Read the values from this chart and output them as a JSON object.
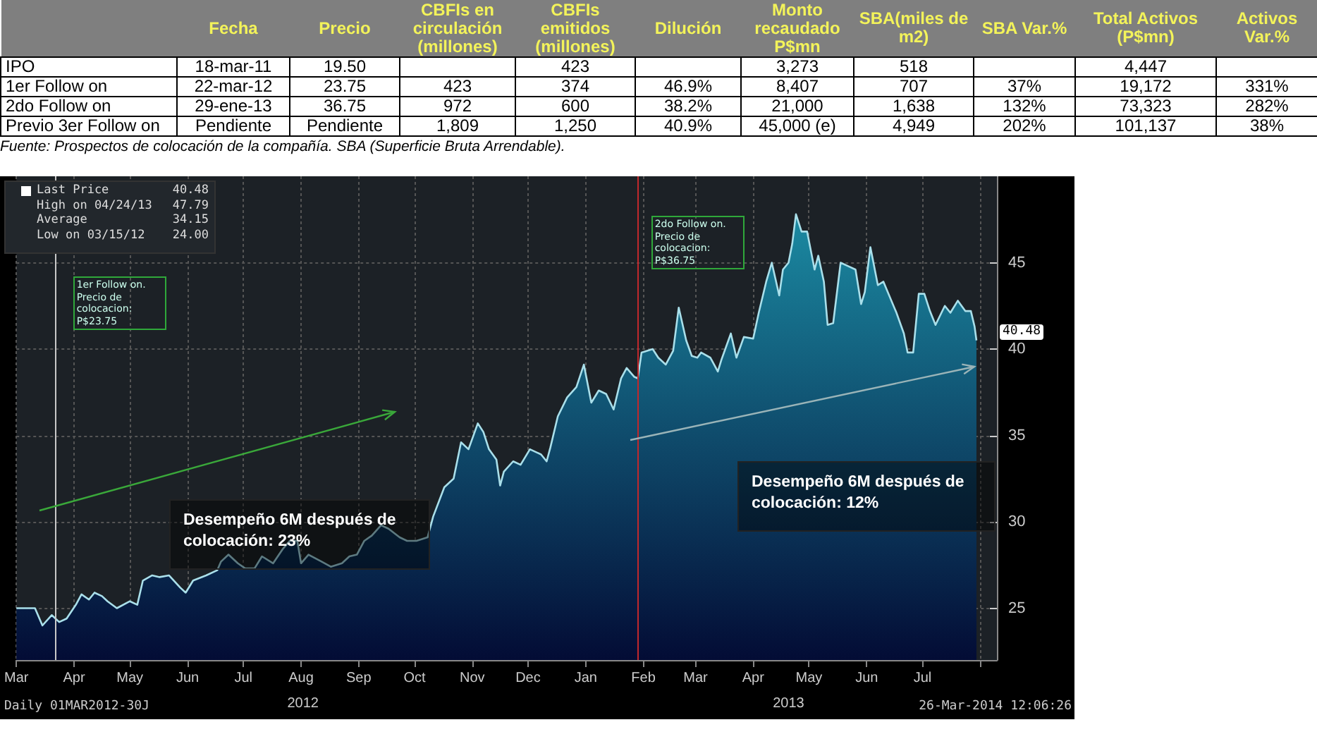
{
  "chart_data": [
    {
      "type": "other",
      "annotations": [
        null,
        "Fecha",
        "Precio",
        "CBFIs en circulación (millones)",
        "CBFIs emitidos (millones)",
        "Dilución",
        "Monto recaudado P$mn",
        "SBA(miles de m2)",
        "SBA Var.%",
        "Total Activos (P$mn)",
        "Activos Var.%",
        "IPO",
        "18-mar-11",
        "19.50",
        null,
        "423",
        null,
        "3,273",
        "518",
        null,
        "4,447",
        null,
        "1er Follow on",
        "22-mar-12",
        "23.75",
        "423",
        "374",
        "46.9%",
        "8,407",
        "707",
        "37%",
        "19,172",
        "331%",
        "2do Follow on",
        "29-ene-13",
        "36.75",
        "972",
        "600",
        "38.2%",
        "21,000",
        "1,638",
        "132%",
        "73,323",
        "282%",
        "Previo 3er Follow on",
        "Pendiente",
        "Pendiente",
        "1,809",
        "1,250",
        "40.9%",
        "45,000 (e)",
        "4,949",
        "202%",
        "101,137",
        "38%",
        "Fuente: Prospectos de colocación de la compañía. SBA (Superficie Bruta Arrendable)."
      ]
    },
    {
      "type": "area",
      "x": [
        "2012-03-01",
        "2012-03-11",
        "2012-03-15",
        "2012-03-20",
        "2012-03-24",
        "2012-03-28",
        "2012-04-02",
        "2012-04-05",
        "2012-04-09",
        "2012-04-12",
        "2012-04-16",
        "2012-04-19",
        "2012-04-24",
        "2012-05-01",
        "2012-05-05",
        "2012-05-08",
        "2012-05-13",
        "2012-05-17",
        "2012-05-22",
        "2012-05-28",
        "2012-05-31",
        "2012-06-04",
        "2012-06-11",
        "2012-06-17",
        "2012-06-19",
        "2012-06-23",
        "2012-06-28",
        "2012-07-02",
        "2012-07-07",
        "2012-07-11",
        "2012-07-17",
        "2012-07-22",
        "2012-07-26",
        "2012-07-30",
        "2012-08-01",
        "2012-08-05",
        "2012-08-12",
        "2012-08-17",
        "2012-08-23",
        "2012-08-27",
        "2012-08-31",
        "2012-09-04",
        "2012-09-08",
        "2012-09-13",
        "2012-09-17",
        "2012-09-23",
        "2012-09-27",
        "2012-10-02",
        "2012-10-08",
        "2012-10-11",
        "2012-10-17",
        "2012-10-22",
        "2012-10-26",
        "2012-10-30",
        "2012-11-04",
        "2012-11-07",
        "2012-11-10",
        "2012-11-14",
        "2012-11-16",
        "2012-11-18",
        "2012-11-23",
        "2012-11-27",
        "2012-12-02",
        "2012-12-08",
        "2012-12-11",
        "2012-12-13",
        "2012-12-17",
        "2012-12-22",
        "2012-12-27",
        "2012-12-31",
        "2013-01-04",
        "2013-01-08",
        "2013-01-12",
        "2013-01-16",
        "2013-01-20",
        "2013-01-23",
        "2013-01-27",
        "2013-01-29",
        "2013-01-31",
        "2013-02-03",
        "2013-02-06",
        "2013-02-09",
        "2013-02-13",
        "2013-02-17",
        "2013-02-20",
        "2013-02-24",
        "2013-02-27",
        "2013-03-02",
        "2013-03-04",
        "2013-03-09",
        "2013-03-13",
        "2013-03-15",
        "2013-03-20",
        "2013-03-23",
        "2013-03-27",
        "2013-04-01",
        "2013-04-04",
        "2013-04-08",
        "2013-04-11",
        "2013-04-15",
        "2013-04-17",
        "2013-04-20",
        "2013-04-22",
        "2013-04-24",
        "2013-04-27",
        "2013-04-30",
        "2013-05-04",
        "2013-05-06",
        "2013-05-09",
        "2013-05-11",
        "2013-05-14",
        "2013-05-18",
        "2013-05-22",
        "2013-05-26",
        "2013-05-29",
        "2013-05-31",
        "2013-06-03",
        "2013-06-07",
        "2013-06-10",
        "2013-06-17",
        "2013-06-21",
        "2013-06-23",
        "2013-06-26",
        "2013-06-29",
        "2013-07-02",
        "2013-07-05",
        "2013-07-08",
        "2013-07-13",
        "2013-07-16",
        "2013-07-20",
        "2013-07-24",
        "2013-07-27",
        "2013-07-29",
        "2013-07-30"
      ],
      "series": [
        {
          "color": "#a9dfea",
          "values": [
            25.0,
            25.0,
            24.0,
            24.6,
            24.2,
            24.4,
            25.2,
            25.8,
            25.5,
            25.9,
            25.7,
            25.4,
            25.0,
            25.4,
            25.2,
            26.6,
            26.9,
            26.8,
            26.9,
            26.2,
            25.9,
            26.6,
            26.9,
            27.2,
            27.7,
            28.1,
            27.6,
            27.3,
            27.3,
            28.0,
            27.6,
            28.4,
            28.9,
            28.9,
            27.6,
            28.1,
            27.7,
            27.4,
            27.6,
            28.0,
            28.1,
            28.9,
            29.2,
            29.8,
            29.6,
            29.1,
            28.9,
            28.9,
            29.1,
            30.3,
            32.0,
            32.5,
            34.6,
            34.2,
            35.7,
            35.2,
            34.2,
            33.6,
            32.1,
            32.9,
            33.5,
            33.3,
            34.2,
            33.9,
            33.5,
            34.3,
            36.1,
            37.2,
            37.8,
            39.1,
            36.9,
            37.6,
            37.4,
            36.5,
            38.3,
            38.9,
            38.4,
            38.3,
            39.8,
            39.9,
            40.0,
            39.5,
            39.1,
            39.9,
            42.4,
            40.5,
            39.6,
            39.5,
            39.8,
            39.5,
            38.7,
            39.4,
            40.9,
            39.5,
            40.7,
            40.6,
            42.1,
            43.9,
            45.0,
            43.1,
            44.6,
            45.0,
            46.1,
            47.8,
            46.8,
            46.8,
            44.6,
            45.4,
            43.9,
            41.4,
            41.5,
            45.0,
            44.8,
            44.6,
            42.6,
            43.3,
            45.9,
            43.7,
            43.9,
            42.1,
            40.9,
            39.8,
            39.8,
            43.2,
            43.2,
            42.2,
            41.4,
            42.5,
            42.1,
            42.8,
            42.2,
            42.2,
            41.3,
            40.5
          ]
        }
      ],
      "xlim": [
        "2012-03-01",
        "2013-08-10"
      ],
      "xticks": [
        {
          "value": "2012-03-01",
          "label": "Mar"
        },
        {
          "value": "2012-04-01",
          "label": "Apr"
        },
        {
          "value": "2012-05-01",
          "label": "May"
        },
        {
          "value": "2012-06-01",
          "label": "Jun"
        },
        {
          "value": "2012-07-01",
          "label": "Jul"
        },
        {
          "value": "2012-08-01",
          "label": "Aug"
        },
        {
          "value": "2012-09-01",
          "label": "Sep"
        },
        {
          "value": "2012-10-01",
          "label": "Oct"
        },
        {
          "value": "2012-11-01",
          "label": "Nov"
        },
        {
          "value": "2012-12-01",
          "label": "Dec"
        },
        {
          "value": "2013-01-01",
          "label": "Jan"
        },
        {
          "value": "2013-02-01",
          "label": "Feb"
        },
        {
          "value": "2013-03-01",
          "label": "Mar"
        },
        {
          "value": "2013-04-01",
          "label": "Apr"
        },
        {
          "value": "2013-05-01",
          "label": "May"
        },
        {
          "value": "2013-06-01",
          "label": "Jun"
        },
        {
          "value": "2013-07-01",
          "label": "Jul"
        },
        {
          "value": "2013-08-01",
          "label": null
        }
      ],
      "x2lim": [
        "2012-03-01",
        "2013-08-10"
      ],
      "x2ticks": [
        {
          "value": "2012-08-02",
          "label": "2012"
        },
        {
          "value": "2013-04-20",
          "label": "2013"
        }
      ],
      "ylim": [
        22,
        50
      ],
      "yticks": [
        25,
        30,
        35,
        40,
        45
      ],
      "grid": true,
      "ref_lines": [
        {
          "axis": "x",
          "value": "2012-03-22",
          "label": "1er Follow on. Precio de colocacion: P$23.75",
          "color": "#c8c8c8"
        },
        {
          "axis": "x",
          "value": "2013-01-29",
          "label": "2do Follow on. Precio de colocacion: P$36.75",
          "color": "#c0282c"
        }
      ],
      "annotations": [
        "Last Price 40.48",
        "High on 04/24/13 47.79",
        "Average 34.15",
        "Low on 03/15/12 24.00",
        "Desempeño 6M después de colocación: 23%",
        "Desempeño 6M después de colocación: 12%",
        "Daily 01MAR2012-30J",
        "26-Mar-2014 12:06:26",
        {
          "text": "40.48",
          "x": "2013-07-30",
          "y": 40.48
        }
      ]
    }
  ]
}
